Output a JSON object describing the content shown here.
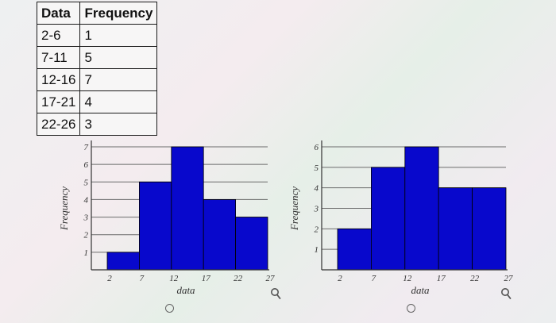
{
  "table": {
    "headers": [
      "Data",
      "Frequency"
    ],
    "rows": [
      [
        "2-6",
        "1"
      ],
      [
        "7-11",
        "5"
      ],
      [
        "12-16",
        "7"
      ],
      [
        "17-21",
        "4"
      ],
      [
        "22-26",
        "3"
      ]
    ]
  },
  "chart_data": [
    {
      "type": "bar",
      "categories": [
        "2-7",
        "7-12",
        "12-17",
        "17-22",
        "22-27"
      ],
      "values": [
        1,
        5,
        7,
        4,
        3
      ],
      "x_ticks": [
        "2",
        "7",
        "12",
        "17",
        "22",
        "27"
      ],
      "y_ticks": [
        "1",
        "2",
        "3",
        "4",
        "5",
        "6",
        "7"
      ],
      "xlabel": "data",
      "ylabel": "Frequency",
      "ylim": [
        0,
        7
      ],
      "grid": true,
      "bar_color": "#0808cc"
    },
    {
      "type": "bar",
      "categories": [
        "2-7",
        "7-12",
        "12-17",
        "17-22",
        "22-27"
      ],
      "values": [
        2,
        5,
        6,
        4,
        4
      ],
      "x_ticks": [
        "2",
        "7",
        "12",
        "17",
        "22",
        "27"
      ],
      "y_ticks": [
        "1",
        "2",
        "3",
        "4",
        "5",
        "6"
      ],
      "xlabel": "data",
      "ylabel": "Frequency",
      "ylim": [
        0,
        6
      ],
      "grid": true,
      "bar_color": "#0808cc"
    }
  ],
  "icons": {
    "radio": "radio-circle-icon",
    "zoom": "magnifier-icon"
  }
}
